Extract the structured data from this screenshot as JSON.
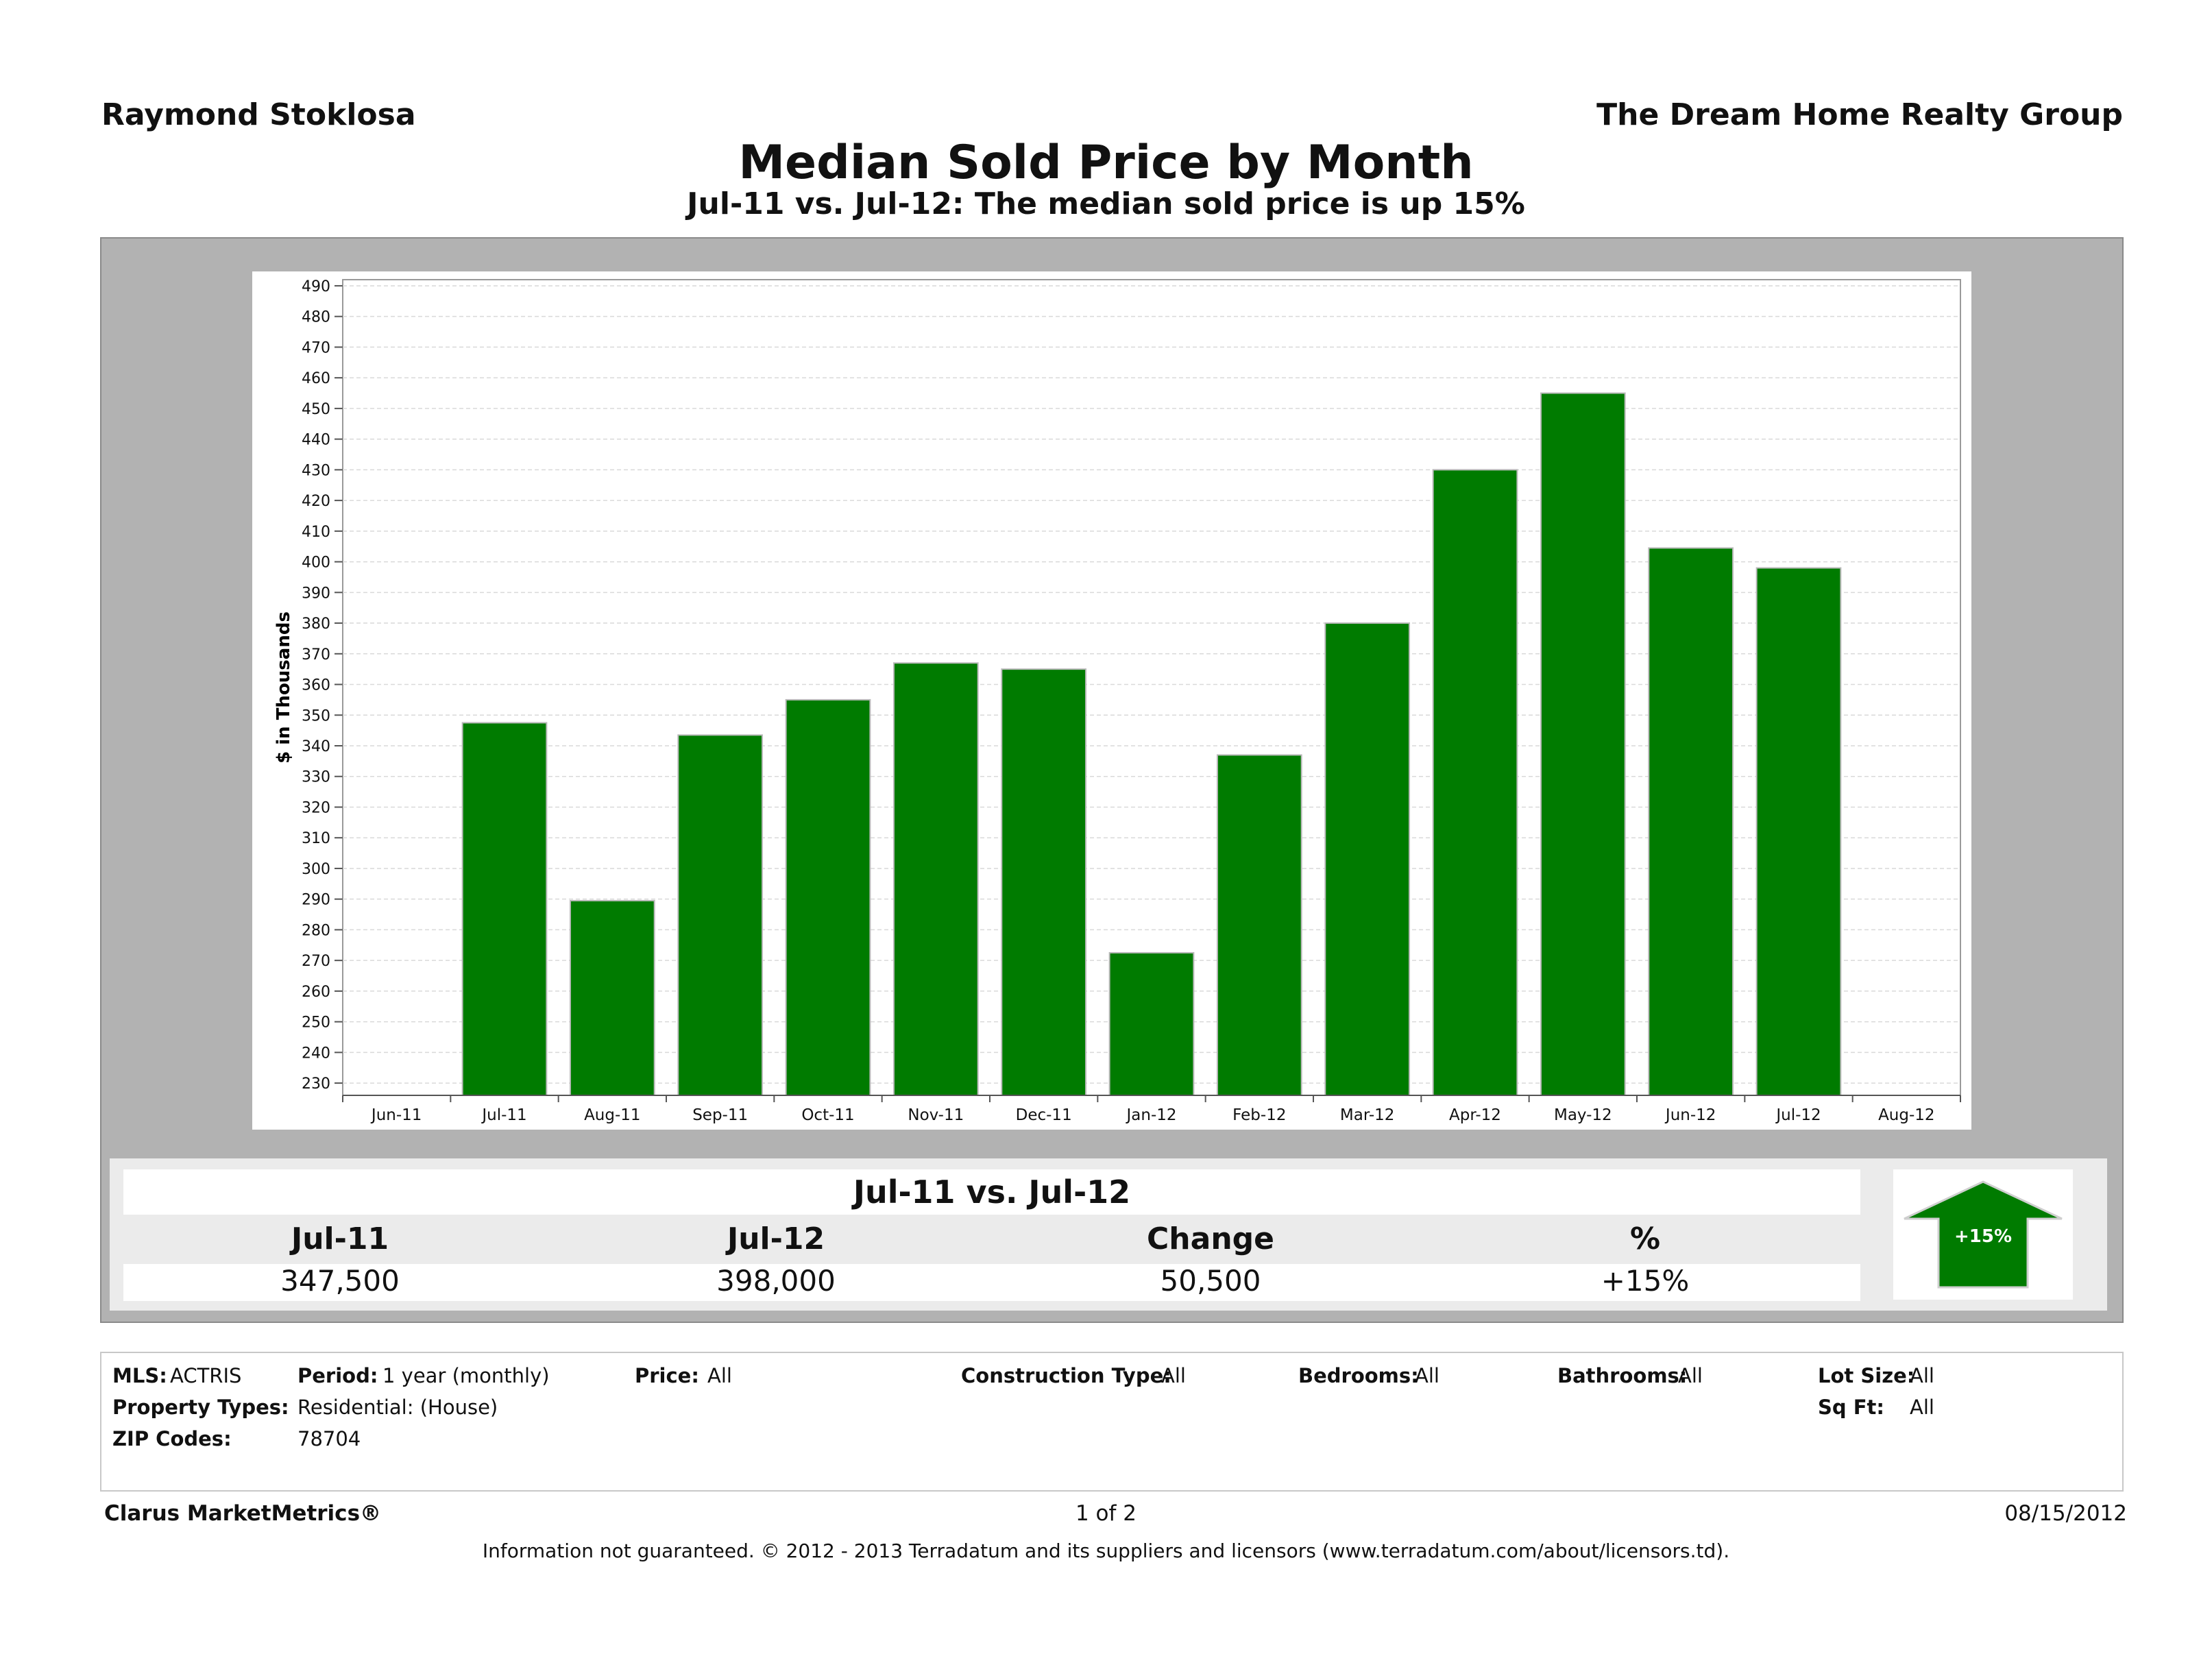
{
  "header": {
    "agent": "Raymond Stoklosa",
    "company": "The Dream Home Realty Group",
    "title": "Median Sold Price by Month",
    "subtitle": "Jul-11 vs. Jul-12:  The median sold price is up 15%"
  },
  "chart_data": {
    "type": "bar",
    "title": "Median Sold Price by Month",
    "ylabel": "$ in Thousands",
    "xlabel": "",
    "ylim": [
      226,
      492
    ],
    "yticks": [
      230,
      240,
      250,
      260,
      270,
      280,
      290,
      300,
      310,
      320,
      330,
      340,
      350,
      360,
      370,
      380,
      390,
      400,
      410,
      420,
      430,
      440,
      450,
      460,
      470,
      480,
      490
    ],
    "axis_categories": [
      "Jun-11",
      "Jul-11",
      "Aug-11",
      "Sep-11",
      "Oct-11",
      "Nov-11",
      "Dec-11",
      "Jan-12",
      "Feb-12",
      "Mar-12",
      "Apr-12",
      "May-12",
      "Jun-12",
      "Jul-12",
      "Aug-12"
    ],
    "categories": [
      "Jul-11",
      "Aug-11",
      "Sep-11",
      "Oct-11",
      "Nov-11",
      "Dec-11",
      "Jan-12",
      "Feb-12",
      "Mar-12",
      "Apr-12",
      "May-12",
      "Jun-12",
      "Jul-12"
    ],
    "values": [
      347.5,
      289.5,
      343.5,
      355,
      367,
      365,
      272.5,
      337,
      380,
      430,
      455,
      404.5,
      398
    ],
    "bar_color": "#007b00",
    "grid": true,
    "legend": "none"
  },
  "summary": {
    "title": "Jul-11 vs. Jul-12",
    "col1_label": "Jul-11",
    "col2_label": "Jul-12",
    "col3_label": "Change",
    "col4_label": "%",
    "col1_value": "347,500",
    "col2_value": "398,000",
    "col3_value": "50,500",
    "col4_value": "+15%",
    "arrow_label": "+15%",
    "arrow_color": "#007b00"
  },
  "filters": {
    "mls_label": "MLS:",
    "mls_value": "ACTRIS",
    "period_label": "Period:",
    "period_value": "1 year (monthly)",
    "price_label": "Price:",
    "price_value": "All",
    "construction_label": "Construction Type:",
    "construction_value": "All",
    "bedrooms_label": "Bedrooms:",
    "bedrooms_value": "All",
    "bathrooms_label": "Bathrooms:",
    "bathrooms_value": "All",
    "lotsize_label": "Lot Size:",
    "lotsize_value": "All",
    "proptype_label": "Property Types:",
    "proptype_value": "Residential: (House)",
    "sqft_label": "Sq Ft:",
    "sqft_value": "All",
    "zip_label": "ZIP Codes:",
    "zip_value": "78704"
  },
  "footer": {
    "brand": "Clarus MarketMetrics®",
    "page": "1 of 2",
    "date": "08/15/2012",
    "disclaimer": "Information not guaranteed.  © 2012 - 2013 Terradatum and its suppliers and licensors (www.terradatum.com/about/licensors.td)."
  }
}
